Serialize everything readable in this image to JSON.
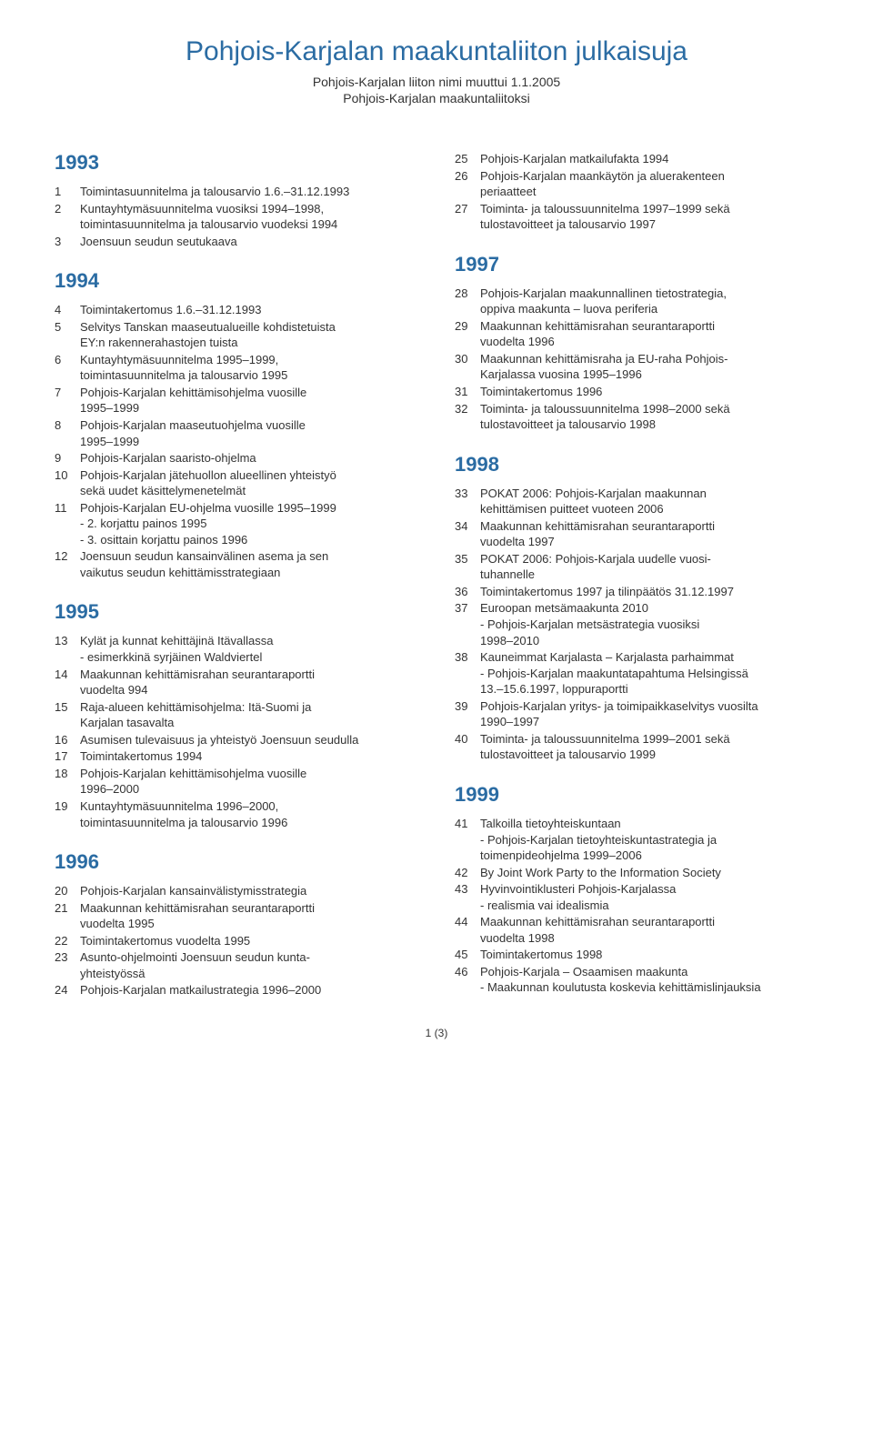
{
  "header": {
    "title": "Pohjois-Karjalan maakuntaliiton julkaisuja",
    "subtitle1": "Pohjois-Karjalan liiton nimi muuttui 1.1.2005",
    "subtitle2": "Pohjois-Karjalan maakuntaliitoksi"
  },
  "left": [
    {
      "year": "1993",
      "items": [
        {
          "n": "1",
          "t": "Toimintasuunnitelma ja talousarvio 1.6.–31.12.1993"
        },
        {
          "n": "2",
          "t": "Kuntayhtymäsuunnitelma vuosiksi 1994–1998,\ntoimintasuunnitelma ja talousarvio vuodeksi 1994"
        },
        {
          "n": "3",
          "t": "Joensuun seudun seutukaava"
        }
      ]
    },
    {
      "year": "1994",
      "items": [
        {
          "n": "4",
          "t": "Toimintakertomus 1.6.–31.12.1993"
        },
        {
          "n": "5",
          "t": "Selvitys Tanskan maaseutualueille kohdistetuista\nEY:n rakennerahastojen tuista"
        },
        {
          "n": "6",
          "t": "Kuntayhtymäsuunnitelma 1995–1999,\ntoimintasuunnitelma ja talousarvio 1995"
        },
        {
          "n": "7",
          "t": "Pohjois-Karjalan kehittämisohjelma vuosille\n1995–1999"
        },
        {
          "n": "8",
          "t": "Pohjois-Karjalan maaseutuohjelma vuosille\n1995–1999"
        },
        {
          "n": "9",
          "t": "Pohjois-Karjalan saaristo-ohjelma"
        },
        {
          "n": "10",
          "t": "Pohjois-Karjalan jätehuollon alueellinen yhteistyö\nsekä uudet käsittelymenetelmät"
        },
        {
          "n": "11",
          "t": "Pohjois-Karjalan EU-ohjelma vuosille 1995–1999\n- 2. korjattu painos 1995\n- 3. osittain korjattu painos 1996"
        },
        {
          "n": "12",
          "t": "Joensuun seudun kansainvälinen asema ja sen\nvaikutus seudun kehittämisstrategiaan"
        }
      ]
    },
    {
      "year": "1995",
      "items": [
        {
          "n": "13",
          "t": "Kylät ja kunnat kehittäjinä Itävallassa\n- esimerkkinä syrjäinen Waldviertel"
        },
        {
          "n": "14",
          "t": "Maakunnan kehittämisrahan seurantaraportti\nvuodelta 994"
        },
        {
          "n": "15",
          "t": "Raja-alueen kehittämisohjelma: Itä-Suomi ja\nKarjalan tasavalta"
        },
        {
          "n": "16",
          "t": "Asumisen tulevaisuus ja yhteistyö Joensuun seudulla"
        },
        {
          "n": "17",
          "t": "Toimintakertomus 1994"
        },
        {
          "n": "18",
          "t": "Pohjois-Karjalan kehittämisohjelma vuosille\n1996–2000"
        },
        {
          "n": "19",
          "t": "Kuntayhtymäsuunnitelma 1996–2000,\ntoimintasuunnitelma ja talousarvio 1996"
        }
      ]
    },
    {
      "year": "1996",
      "items": [
        {
          "n": "20",
          "t": "Pohjois-Karjalan kansainvälistymisstrategia"
        },
        {
          "n": "21",
          "t": "Maakunnan kehittämisrahan seurantaraportti\nvuodelta 1995"
        },
        {
          "n": "22",
          "t": "Toimintakertomus vuodelta 1995"
        },
        {
          "n": "23",
          "t": "Asunto-ohjelmointi Joensuun seudun kunta-\nyhteistyössä"
        },
        {
          "n": "24",
          "t": "Pohjois-Karjalan matkailustrategia 1996–2000"
        }
      ]
    }
  ],
  "right": [
    {
      "year": "",
      "items": [
        {
          "n": "25",
          "t": "Pohjois-Karjalan matkailufakta 1994"
        },
        {
          "n": "26",
          "t": "Pohjois-Karjalan maankäytön ja aluerakenteen\nperiaatteet"
        },
        {
          "n": "27",
          "t": "Toiminta- ja taloussuunnitelma 1997–1999 sekä\ntulostavoitteet ja talousarvio 1997"
        }
      ]
    },
    {
      "year": "1997",
      "items": [
        {
          "n": "28",
          "t": "Pohjois-Karjalan maakunnallinen tietostrategia,\noppiva maakunta – luova periferia"
        },
        {
          "n": "29",
          "t": "Maakunnan kehittämisrahan seurantaraportti\nvuodelta 1996"
        },
        {
          "n": "30",
          "t": "Maakunnan kehittämisraha ja EU-raha Pohjois-\nKarjalassa vuosina 1995–1996"
        },
        {
          "n": "31",
          "t": "Toimintakertomus 1996"
        },
        {
          "n": "32",
          "t": "Toiminta- ja taloussuunnitelma 1998–2000 sekä\ntulostavoitteet ja talousarvio 1998"
        }
      ]
    },
    {
      "year": "1998",
      "items": [
        {
          "n": "33",
          "t": "POKAT 2006: Pohjois-Karjalan maakunnan\nkehittämisen puitteet vuoteen 2006"
        },
        {
          "n": "34",
          "t": "Maakunnan kehittämisrahan seurantaraportti\nvuodelta 1997"
        },
        {
          "n": "35",
          "t": "POKAT 2006: Pohjois-Karjala uudelle vuosi-\ntuhannelle"
        },
        {
          "n": "36",
          "t": "Toimintakertomus 1997 ja tilinpäätös 31.12.1997"
        },
        {
          "n": "37",
          "t": "Euroopan metsämaakunta 2010\n- Pohjois-Karjalan metsästrategia vuosiksi\n1998–2010"
        },
        {
          "n": "38",
          "t": "Kauneimmat Karjalasta – Karjalasta parhaimmat\n- Pohjois-Karjalan maakuntatapahtuma Helsingissä\n13.–15.6.1997, loppuraportti"
        },
        {
          "n": "39",
          "t": "Pohjois-Karjalan yritys- ja toimipaikkaselvitys vuosilta\n1990–1997"
        },
        {
          "n": "40",
          "t": "Toiminta- ja taloussuunnitelma 1999–2001 sekä\ntulostavoitteet ja talousarvio 1999"
        }
      ]
    },
    {
      "year": "1999",
      "items": [
        {
          "n": "41",
          "t": "Talkoilla tietoyhteiskuntaan\n- Pohjois-Karjalan tietoyhteiskuntastrategia ja\ntoimenpideohjelma 1999–2006"
        },
        {
          "n": "42",
          "t": "By Joint Work Party to the Information Society"
        },
        {
          "n": "43",
          "t": "Hyvinvointiklusteri Pohjois-Karjalassa\n- realismia vai idealismia"
        },
        {
          "n": "44",
          "t": "Maakunnan kehittämisrahan seurantaraportti\nvuodelta 1998"
        },
        {
          "n": "45",
          "t": "Toimintakertomus 1998"
        },
        {
          "n": "46",
          "t": "Pohjois-Karjala – Osaamisen maakunta\n- Maakunnan koulutusta koskevia kehittämislinjauksia"
        }
      ]
    }
  ],
  "footer": "1 (3)"
}
